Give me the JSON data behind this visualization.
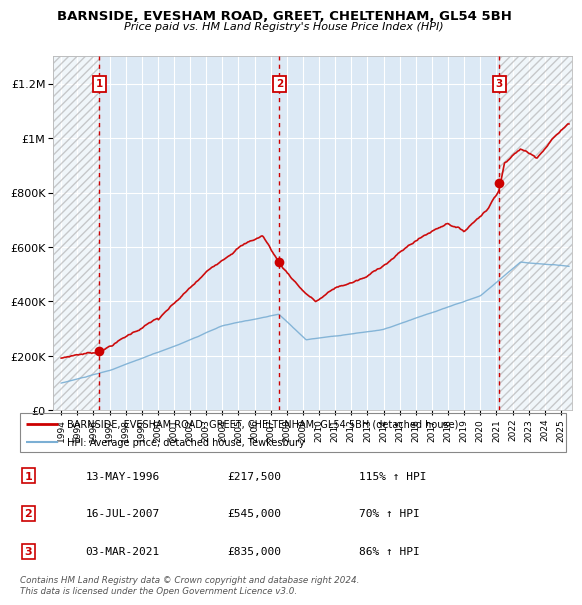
{
  "title": "BARNSIDE, EVESHAM ROAD, GREET, CHELTENHAM, GL54 5BH",
  "subtitle": "Price paid vs. HM Land Registry's House Price Index (HPI)",
  "ylim": [
    0,
    1300000
  ],
  "xlim_start": 1993.5,
  "xlim_end": 2025.7,
  "ytick_labels": [
    "£0",
    "£200K",
    "£400K",
    "£600K",
    "£800K",
    "£1M",
    "£1.2M"
  ],
  "ytick_values": [
    0,
    200000,
    400000,
    600000,
    800000,
    1000000,
    1200000
  ],
  "xtick_years": [
    1994,
    1995,
    1996,
    1997,
    1998,
    1999,
    2000,
    2001,
    2002,
    2003,
    2004,
    2005,
    2006,
    2007,
    2008,
    2009,
    2010,
    2011,
    2012,
    2013,
    2014,
    2015,
    2016,
    2017,
    2018,
    2019,
    2020,
    2021,
    2022,
    2023,
    2024,
    2025
  ],
  "sale_dates": [
    1996.37,
    2007.54,
    2021.17
  ],
  "sale_prices": [
    217500,
    545000,
    835000
  ],
  "sale_labels": [
    "1",
    "2",
    "3"
  ],
  "hpi_line_color": "#7bafd4",
  "price_line_color": "#cc0000",
  "dashed_vline_color": "#cc0000",
  "annotation_box_color": "#cc0000",
  "background_plot": "#dce9f5",
  "footer_text": "Contains HM Land Registry data © Crown copyright and database right 2024.\nThis data is licensed under the Open Government Licence v3.0.",
  "legend_entry1": "BARNSIDE, EVESHAM ROAD, GREET, CHELTENHAM, GL54 5BH (detached house)",
  "legend_entry2": "HPI: Average price, detached house, Tewkesbury",
  "table_rows": [
    [
      "1",
      "13-MAY-1996",
      "£217,500",
      "115% ↑ HPI"
    ],
    [
      "2",
      "16-JUL-2007",
      "£545,000",
      "70% ↑ HPI"
    ],
    [
      "3",
      "03-MAR-2021",
      "£835,000",
      "86% ↑ HPI"
    ]
  ]
}
